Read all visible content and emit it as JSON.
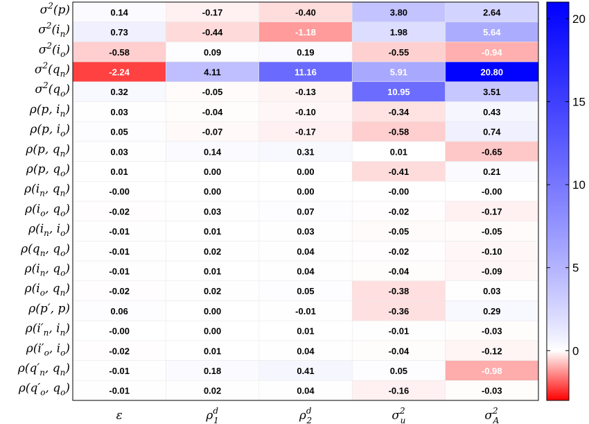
{
  "chart_data": {
    "type": "heatmap",
    "row_labels": [
      {
        "base": "σ",
        "sup": "2",
        "rest": "(p)"
      },
      {
        "base": "σ",
        "sup": "2",
        "rest": "(i",
        "sub": "n",
        "tail": ")"
      },
      {
        "base": "σ",
        "sup": "2",
        "rest": "(i",
        "sub": "o",
        "tail": ")"
      },
      {
        "base": "σ",
        "sup": "2",
        "rest": "(q",
        "sub": "n",
        "tail": ")"
      },
      {
        "base": "σ",
        "sup": "2",
        "rest": "(q",
        "sub": "o",
        "tail": ")"
      },
      {
        "base": "ρ(p, i",
        "sub": "n",
        "tail": ")"
      },
      {
        "base": "ρ(p, i",
        "sub": "o",
        "tail": ")"
      },
      {
        "base": "ρ(p, q",
        "sub": "n",
        "tail": ")"
      },
      {
        "base": "ρ(p, q",
        "sub": "o",
        "tail": ")"
      },
      {
        "base": "ρ(i",
        "sub": "n",
        "rest": ", q",
        "sub2": "n",
        "tail": ")"
      },
      {
        "base": "ρ(i",
        "sub": "o",
        "rest": ", q",
        "sub2": "o",
        "tail": ")"
      },
      {
        "base": "ρ(i",
        "sub": "n",
        "rest": ", i",
        "sub2": "o",
        "tail": ")"
      },
      {
        "base": "ρ(q",
        "sub": "n",
        "rest": ", q",
        "sub2": "o",
        "tail": ")"
      },
      {
        "base": "ρ(i",
        "sub": "n",
        "rest": ", q",
        "sub2": "o",
        "tail": ")"
      },
      {
        "base": "ρ(i",
        "sub": "o",
        "rest": ", q",
        "sub2": "n",
        "tail": ")"
      },
      {
        "base": "ρ(p′, p)"
      },
      {
        "base": "ρ(i′",
        "sub": "n",
        "rest": ", i",
        "sub2": "n",
        "tail": ")"
      },
      {
        "base": "ρ(i′",
        "sub": "o",
        "rest": ", i",
        "sub2": "o",
        "tail": ")"
      },
      {
        "base": "ρ(q′",
        "sub": "n",
        "rest": ", q",
        "sub2": "n",
        "tail": ")"
      },
      {
        "base": "ρ(q′",
        "sub": "o",
        "rest": ", q",
        "sub2": "o",
        "tail": ")"
      }
    ],
    "col_labels": [
      {
        "base": "ε"
      },
      {
        "base": "ρ",
        "sup": "d",
        "sub": "1"
      },
      {
        "base": "ρ",
        "sup": "d",
        "sub": "2"
      },
      {
        "base": "σ",
        "sup": "2",
        "sub": "u"
      },
      {
        "base": "σ",
        "sup": "2",
        "sub": "A"
      }
    ],
    "values": [
      [
        "0.14",
        "-0.17",
        "-0.40",
        "3.80",
        "2.64"
      ],
      [
        "0.73",
        "-0.44",
        "-1.18",
        "1.98",
        "5.64"
      ],
      [
        "-0.58",
        "0.09",
        "0.19",
        "-0.55",
        "-0.94"
      ],
      [
        "-2.24",
        "4.11",
        "11.16",
        "5.91",
        "20.80"
      ],
      [
        "0.32",
        "-0.05",
        "-0.13",
        "10.95",
        "3.51"
      ],
      [
        "0.03",
        "-0.04",
        "-0.10",
        "-0.34",
        "0.43"
      ],
      [
        "0.05",
        "-0.07",
        "-0.17",
        "-0.58",
        "0.74"
      ],
      [
        "0.03",
        "0.14",
        "0.31",
        "0.01",
        "-0.65"
      ],
      [
        "0.01",
        "0.00",
        "0.00",
        "-0.41",
        "0.21"
      ],
      [
        "-0.00",
        "0.00",
        "0.00",
        "-0.00",
        "-0.00"
      ],
      [
        "-0.02",
        "0.03",
        "0.07",
        "-0.02",
        "-0.17"
      ],
      [
        "-0.01",
        "0.01",
        "0.03",
        "-0.05",
        "-0.05"
      ],
      [
        "-0.01",
        "0.02",
        "0.04",
        "-0.02",
        "-0.10"
      ],
      [
        "-0.01",
        "0.01",
        "0.04",
        "-0.04",
        "-0.09"
      ],
      [
        "-0.02",
        "0.02",
        "0.05",
        "-0.38",
        "0.03"
      ],
      [
        "0.06",
        "0.00",
        "-0.01",
        "-0.36",
        "0.29"
      ],
      [
        "-0.00",
        "0.00",
        "0.01",
        "-0.01",
        "-0.03"
      ],
      [
        "-0.02",
        "0.01",
        "0.04",
        "-0.04",
        "-0.12"
      ],
      [
        "-0.01",
        "0.18",
        "0.41",
        "0.05",
        "-0.98"
      ],
      [
        "-0.01",
        "0.02",
        "0.04",
        "-0.16",
        "-0.03"
      ]
    ],
    "colorbar": {
      "range": [
        -3,
        21
      ],
      "ticks": [
        0,
        5,
        10,
        15,
        20
      ],
      "low_color": "#ff0000",
      "mid_color": "#ffffff",
      "high_color": "#0000ff"
    },
    "text_color_dark_cells": "#ffffff",
    "text_color_light_cells": "#000000",
    "grid": true
  }
}
